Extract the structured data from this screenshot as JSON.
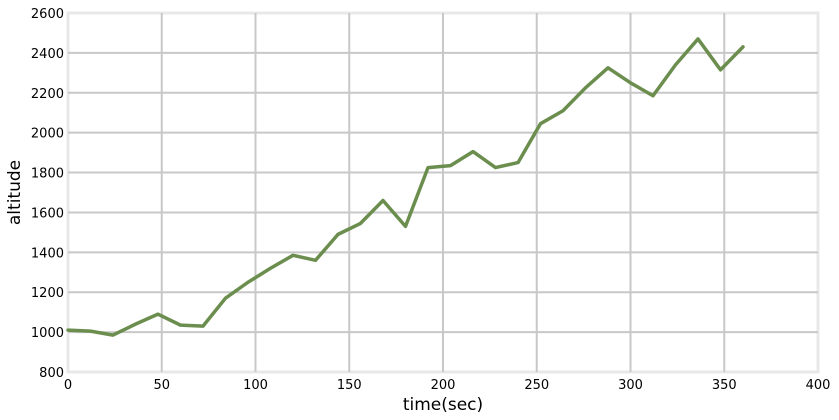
{
  "chart_data": {
    "type": "line",
    "title": "",
    "xlabel": "time(sec)",
    "ylabel": "altitude",
    "xlim": [
      0,
      400
    ],
    "ylim": [
      800,
      2600
    ],
    "xticks": [
      0,
      50,
      100,
      150,
      200,
      250,
      300,
      350,
      400
    ],
    "yticks": [
      800,
      1000,
      1200,
      1400,
      1600,
      1800,
      2000,
      2200,
      2400,
      2600
    ],
    "grid": true,
    "colors": {
      "line": "#6b8e4e",
      "grid": "#c8c8c8",
      "frame": "#e8e8e8"
    },
    "series": [
      {
        "x": [
          0,
          12,
          24,
          36,
          48,
          60,
          72,
          84,
          96,
          108,
          120,
          132,
          144,
          156,
          168,
          180,
          192,
          204,
          216,
          228,
          240,
          252,
          264,
          276,
          288,
          300,
          312,
          324,
          336,
          348,
          360
        ],
        "values": [
          1010,
          1005,
          985,
          1040,
          1090,
          1035,
          1030,
          1170,
          1250,
          1320,
          1385,
          1360,
          1490,
          1545,
          1660,
          1530,
          1825,
          1835,
          1905,
          1825,
          1850,
          2045,
          2110,
          2225,
          2325,
          2250,
          2185,
          2340,
          2470,
          2315,
          2430
        ]
      }
    ]
  }
}
